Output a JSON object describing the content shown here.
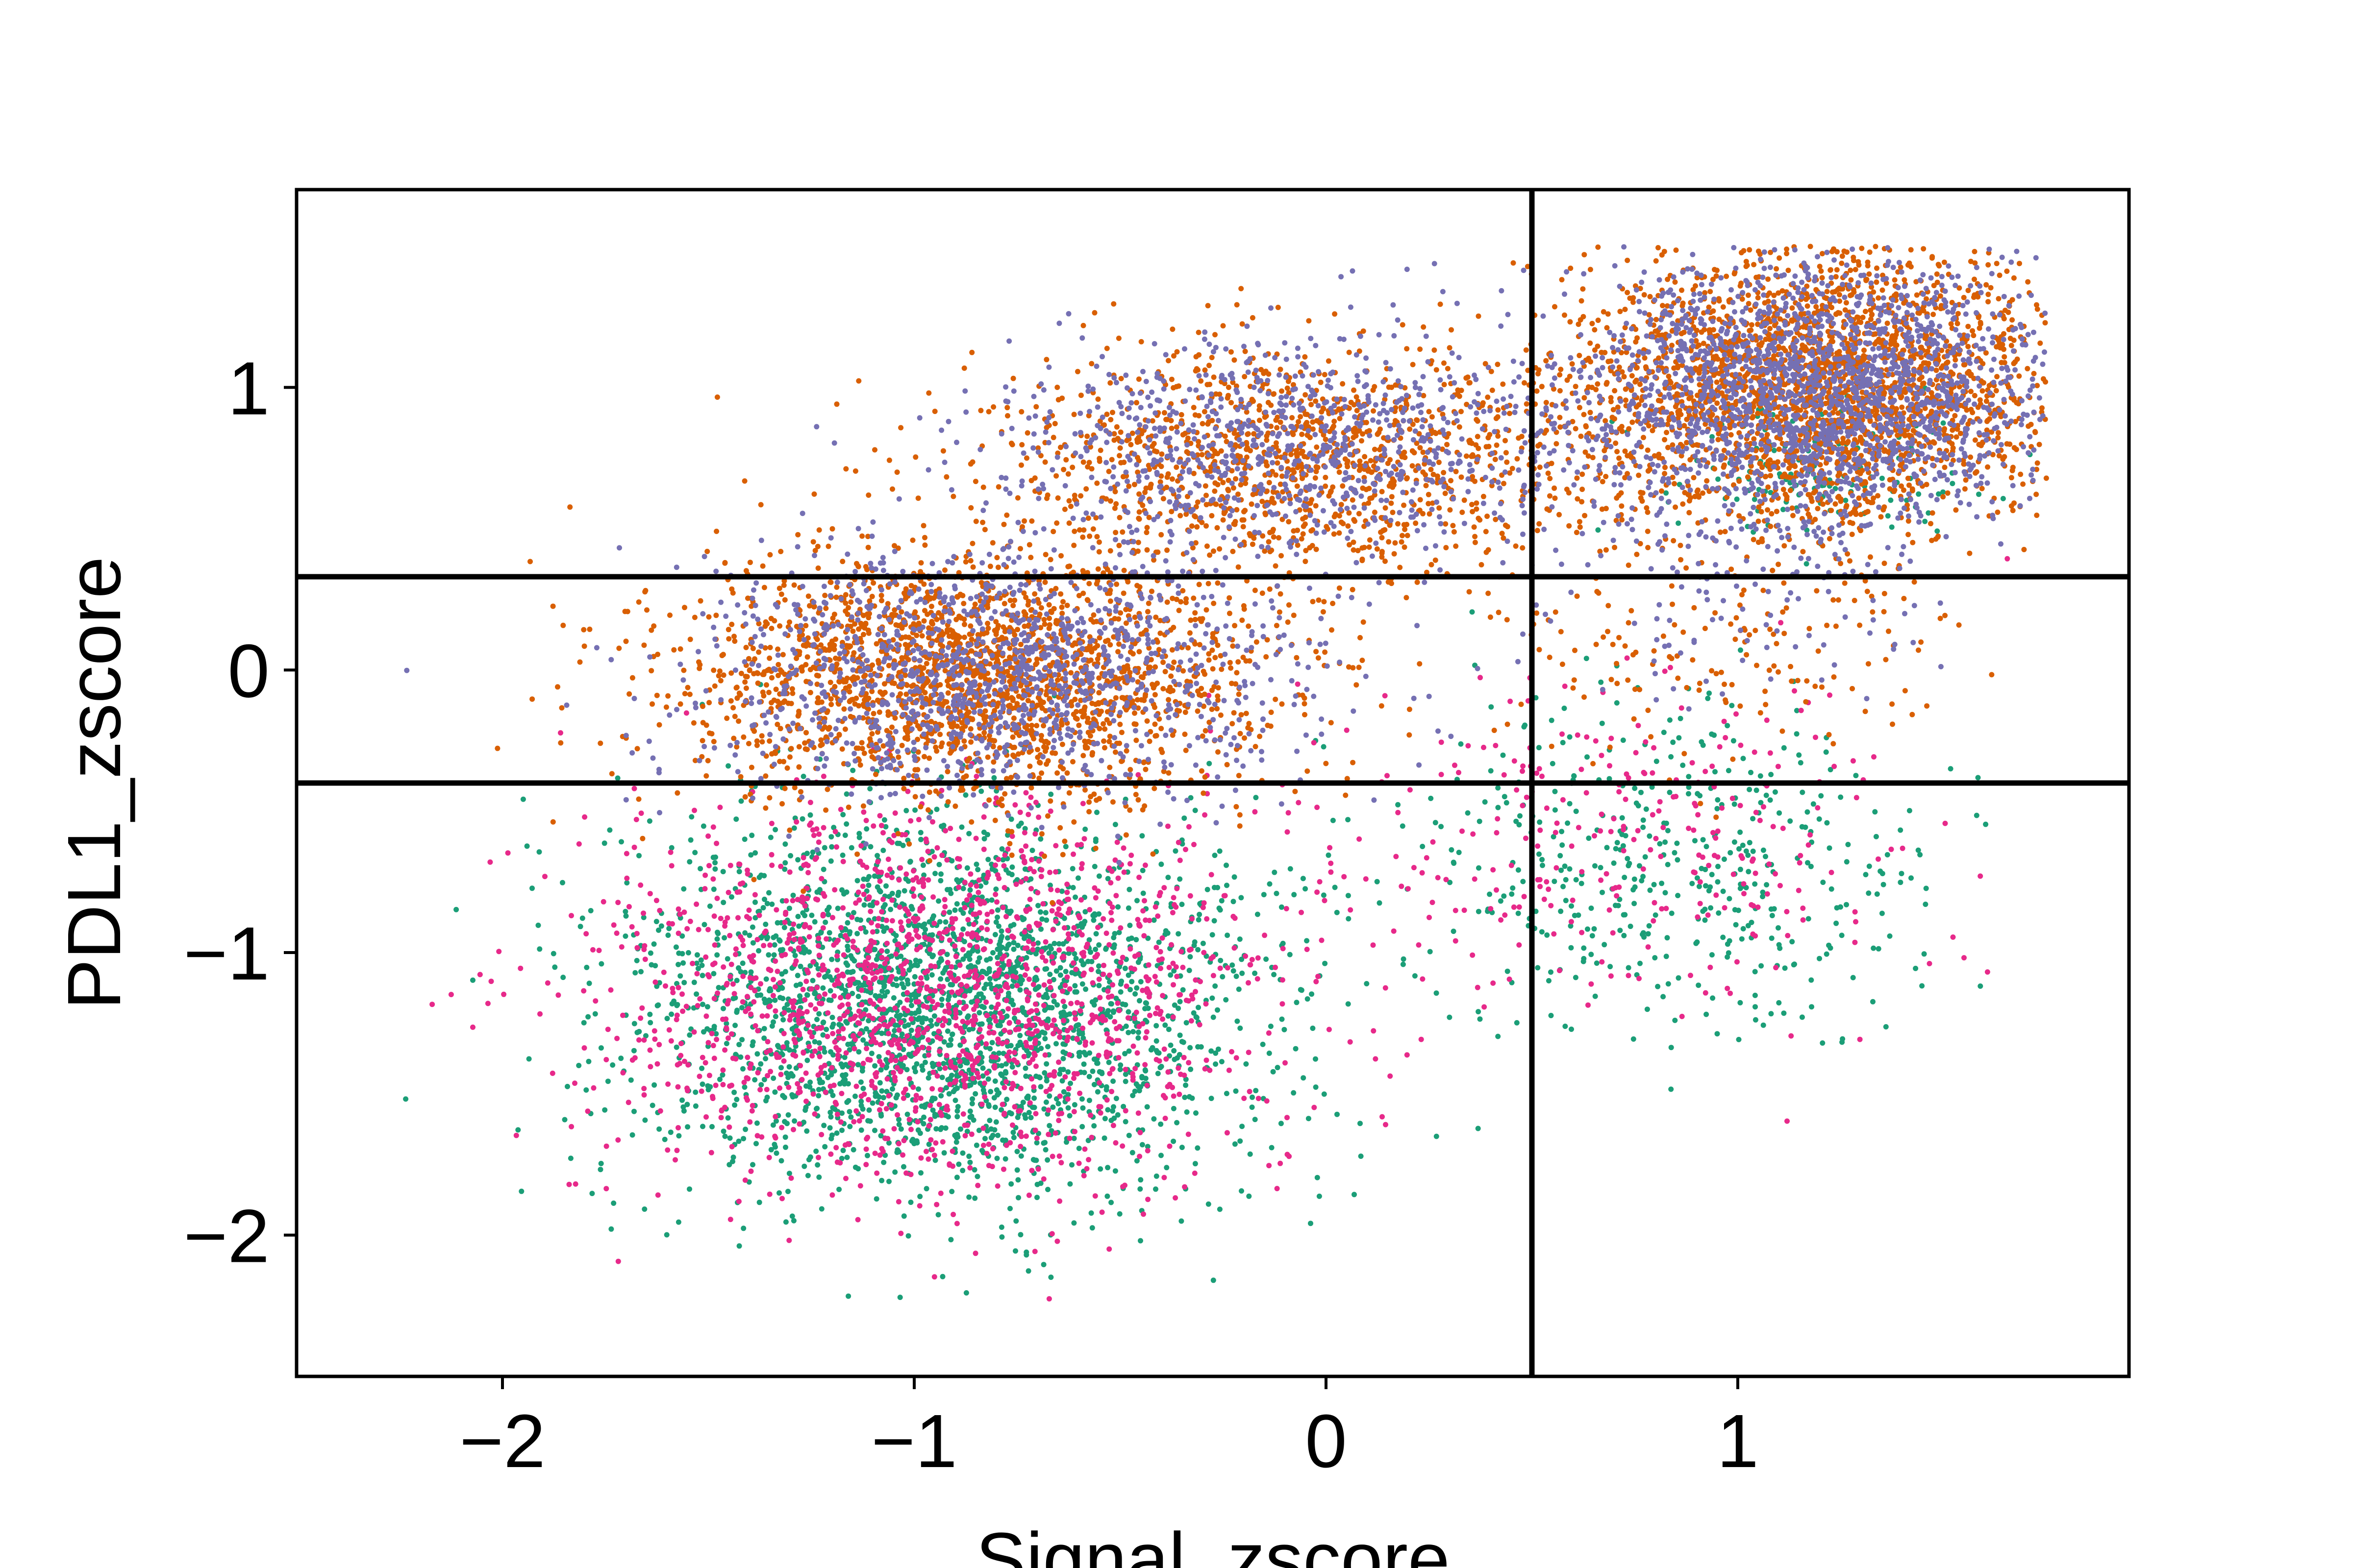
{
  "chart_data": {
    "type": "scatter",
    "title": "",
    "xlabel": "Signal_zscore",
    "ylabel": "PDL1_zscore",
    "xlim": [
      -2.5,
      1.95
    ],
    "ylim": [
      -2.5,
      1.7
    ],
    "grid": false,
    "legend": "none",
    "xticks": [
      -2,
      -1,
      0,
      1
    ],
    "yticks": [
      -2,
      -1,
      0,
      1
    ],
    "xtick_labels": [
      "−2",
      "−1",
      "0",
      "1"
    ],
    "ytick_labels": [
      "−2",
      "−1",
      "0",
      "1"
    ],
    "threshold_lines": {
      "vertical_x": [
        0.5
      ],
      "horizontal_y": [
        0.33,
        -0.4
      ]
    },
    "series": [
      {
        "color": "#1b9e77",
        "clusters": [
          {
            "cx": -0.92,
            "cy": -1.2,
            "sx": 0.38,
            "sy": 0.33,
            "n": 2600
          },
          {
            "cx": 0.85,
            "cy": -0.7,
            "sx": 0.32,
            "sy": 0.28,
            "n": 450
          },
          {
            "cx": 1.2,
            "cy": 0.7,
            "sx": 0.18,
            "sy": 0.12,
            "n": 140
          }
        ]
      },
      {
        "color": "#e7298a",
        "clusters": [
          {
            "cx": -0.95,
            "cy": -1.15,
            "sx": 0.4,
            "sy": 0.34,
            "n": 1700
          },
          {
            "cx": 0.75,
            "cy": -0.6,
            "sx": 0.35,
            "sy": 0.3,
            "n": 280
          }
        ]
      },
      {
        "color": "#d95f02",
        "clusters": [
          {
            "cx": -0.85,
            "cy": -0.02,
            "sx": 0.35,
            "sy": 0.22,
            "n": 2300
          },
          {
            "cx": -0.05,
            "cy": 0.75,
            "sx": 0.38,
            "sy": 0.2,
            "n": 1300
          },
          {
            "cx": 1.2,
            "cy": 1.0,
            "sx": 0.28,
            "sy": 0.24,
            "n": 2600
          },
          {
            "cx": 0.95,
            "cy": 0.1,
            "sx": 0.28,
            "sy": 0.2,
            "n": 160
          }
        ]
      },
      {
        "color": "#7570b3",
        "clusters": [
          {
            "cx": -0.8,
            "cy": 0.0,
            "sx": 0.35,
            "sy": 0.22,
            "n": 1300
          },
          {
            "cx": -0.05,
            "cy": 0.8,
            "sx": 0.38,
            "sy": 0.2,
            "n": 900
          },
          {
            "cx": 1.2,
            "cy": 1.0,
            "sx": 0.28,
            "sy": 0.24,
            "n": 2000
          },
          {
            "cx": 1.0,
            "cy": 0.2,
            "sx": 0.25,
            "sy": 0.18,
            "n": 100
          }
        ]
      }
    ]
  }
}
